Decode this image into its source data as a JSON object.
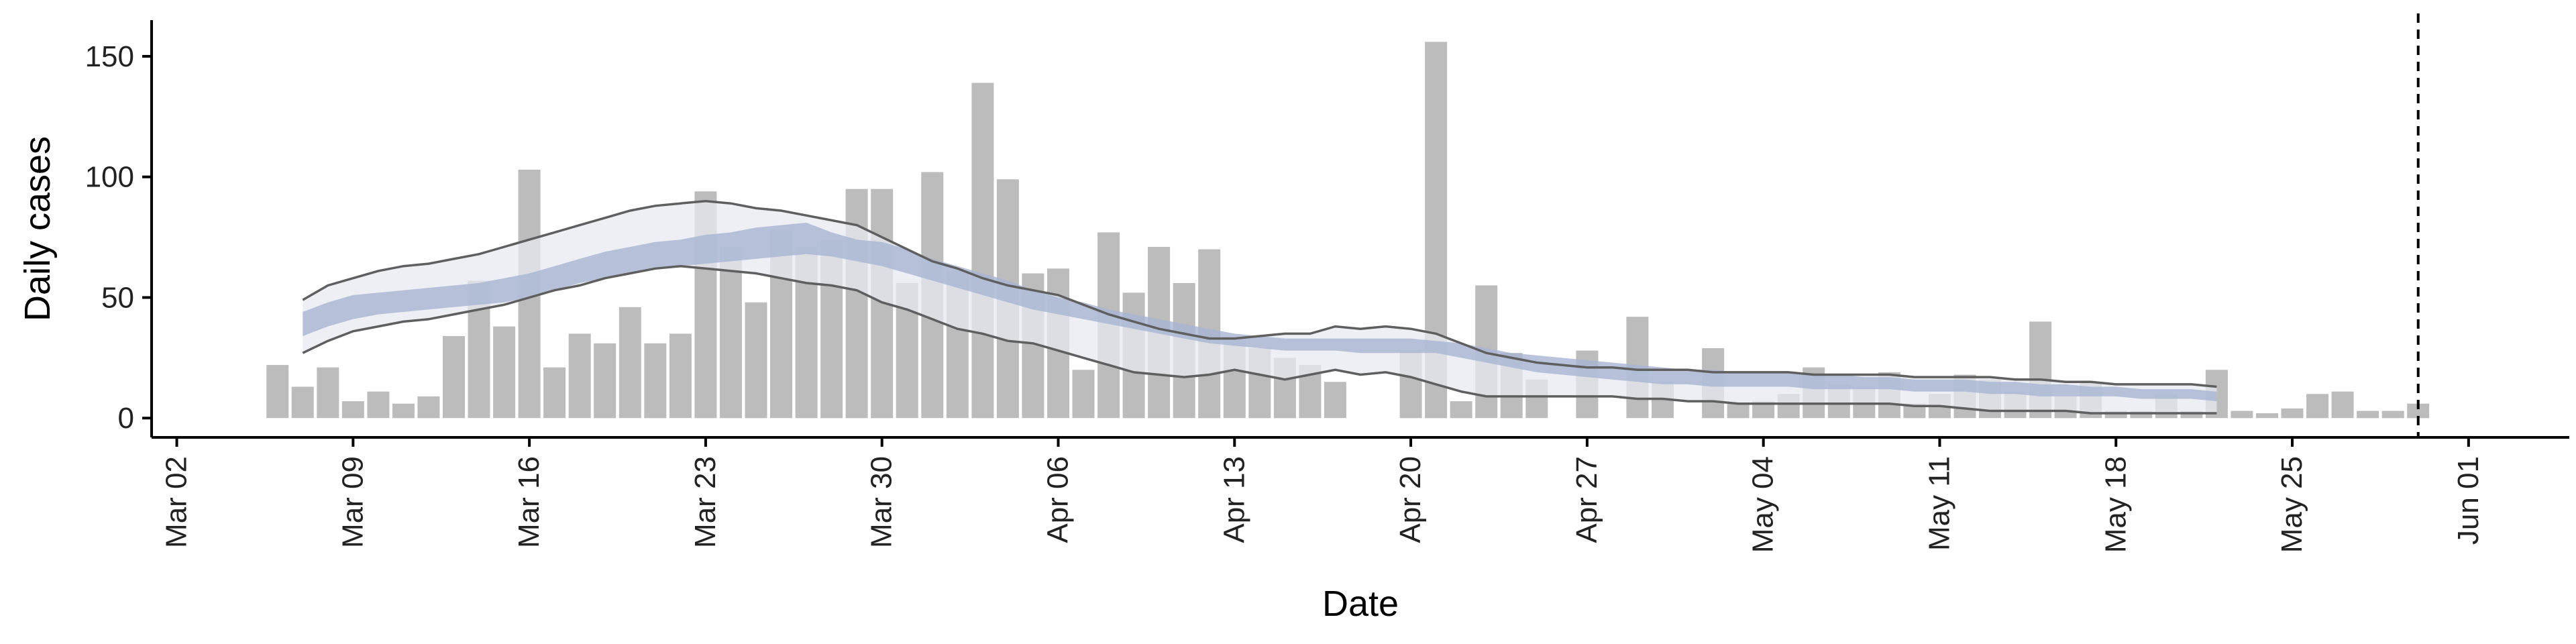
{
  "chart_data": {
    "type": "bar",
    "xlabel": "Date",
    "ylabel": "Daily cases",
    "ylim": [
      -8,
      165
    ],
    "y_ticks": [
      0,
      50,
      100,
      150
    ],
    "x_range": [
      "2020-03-01",
      "2020-06-05"
    ],
    "x_ticks": [
      {
        "date": "2020-03-02",
        "label": "Mar 02"
      },
      {
        "date": "2020-03-09",
        "label": "Mar 09"
      },
      {
        "date": "2020-03-16",
        "label": "Mar 16"
      },
      {
        "date": "2020-03-23",
        "label": "Mar 23"
      },
      {
        "date": "2020-03-30",
        "label": "Mar 30"
      },
      {
        "date": "2020-04-06",
        "label": "Apr 06"
      },
      {
        "date": "2020-04-13",
        "label": "Apr 13"
      },
      {
        "date": "2020-04-20",
        "label": "Apr 20"
      },
      {
        "date": "2020-04-27",
        "label": "Apr 27"
      },
      {
        "date": "2020-05-04",
        "label": "May 04"
      },
      {
        "date": "2020-05-11",
        "label": "May 11"
      },
      {
        "date": "2020-05-18",
        "label": "May 18"
      },
      {
        "date": "2020-05-25",
        "label": "May 25"
      },
      {
        "date": "2020-06-01",
        "label": "Jun 01"
      }
    ],
    "vline_date": "2020-05-30",
    "grid": false,
    "bars": {
      "start_date": "2020-03-06",
      "values": [
        22,
        13,
        21,
        7,
        11,
        6,
        9,
        34,
        57,
        38,
        103,
        21,
        35,
        31,
        46,
        31,
        35,
        94,
        71,
        48,
        78,
        71,
        74,
        95,
        95,
        56,
        102,
        61,
        139,
        99,
        60,
        62,
        20,
        77,
        52,
        71,
        56,
        70,
        33,
        29,
        25,
        22,
        15,
        0,
        0,
        28,
        156,
        7,
        55,
        27,
        16,
        0,
        28,
        0,
        42,
        15,
        0,
        29,
        6,
        7,
        10,
        21,
        14,
        13,
        19,
        6,
        10,
        18,
        16,
        11,
        40,
        9,
        15,
        3,
        3,
        10,
        3,
        20,
        3,
        2,
        4,
        10,
        11,
        3,
        3,
        6
      ]
    },
    "series": [
      {
        "role": "inner-band",
        "start_date": "2020-03-07",
        "upper": [
          44,
          48,
          51,
          52,
          53,
          54,
          55,
          56,
          58,
          60,
          63,
          66,
          69,
          71,
          73,
          74,
          76,
          77,
          79,
          80,
          81,
          77,
          74,
          73,
          70,
          66,
          63,
          60,
          57,
          53,
          50,
          48,
          45,
          43,
          41,
          39,
          37,
          35,
          34,
          33,
          33,
          33,
          33,
          33,
          33,
          32,
          31,
          29,
          27,
          26,
          25,
          24,
          23,
          22,
          21,
          20,
          20,
          19,
          19,
          19,
          18,
          18,
          17,
          17,
          16,
          16,
          16,
          15,
          15,
          14,
          14,
          13,
          13,
          12,
          12,
          12,
          11
        ],
        "lower": [
          34,
          38,
          41,
          43,
          44,
          45,
          46,
          47,
          48,
          50,
          53,
          56,
          58,
          60,
          62,
          63,
          64,
          65,
          66,
          67,
          68,
          67,
          65,
          63,
          60,
          57,
          54,
          51,
          48,
          45,
          43,
          41,
          39,
          37,
          35,
          33,
          31,
          30,
          29,
          28,
          28,
          28,
          27,
          27,
          27,
          27,
          25,
          23,
          21,
          19,
          18,
          17,
          16,
          15,
          14,
          14,
          13,
          13,
          13,
          13,
          12,
          12,
          12,
          12,
          11,
          11,
          11,
          10,
          10,
          9,
          9,
          9,
          9,
          8,
          8,
          8,
          7
        ]
      },
      {
        "role": "outer-band",
        "start_date": "2020-03-07",
        "upper": [
          49,
          55,
          58,
          61,
          63,
          64,
          66,
          68,
          71,
          74,
          77,
          80,
          83,
          86,
          88,
          89,
          90,
          89,
          87,
          86,
          84,
          82,
          80,
          75,
          70,
          65,
          62,
          58,
          55,
          53,
          51,
          47,
          43,
          40,
          37,
          35,
          33,
          33,
          34,
          35,
          35,
          38,
          37,
          38,
          37,
          35,
          31,
          27,
          25,
          23,
          22,
          21,
          21,
          20,
          20,
          20,
          19,
          19,
          19,
          19,
          18,
          18,
          18,
          18,
          17,
          17,
          17,
          17,
          16,
          16,
          15,
          15,
          14,
          14,
          14,
          14,
          13
        ],
        "lower": [
          27,
          32,
          36,
          38,
          40,
          41,
          43,
          45,
          47,
          50,
          53,
          55,
          58,
          60,
          62,
          63,
          62,
          61,
          60,
          58,
          56,
          55,
          53,
          48,
          45,
          41,
          37,
          35,
          32,
          31,
          28,
          25,
          22,
          19,
          18,
          17,
          18,
          20,
          18,
          16,
          18,
          20,
          18,
          19,
          17,
          14,
          11,
          9,
          9,
          9,
          9,
          9,
          9,
          8,
          8,
          7,
          7,
          6,
          6,
          6,
          6,
          6,
          6,
          6,
          5,
          5,
          4,
          3,
          3,
          3,
          3,
          2,
          2,
          2,
          2,
          2,
          2
        ]
      }
    ],
    "colors": {
      "bar": "#bcbcbc",
      "outer_band": "#e7e9f2",
      "inner_band": "#a8b4d2",
      "band_edge": "#5f5f5f",
      "axis": "#000000",
      "vline": "#000000"
    }
  }
}
